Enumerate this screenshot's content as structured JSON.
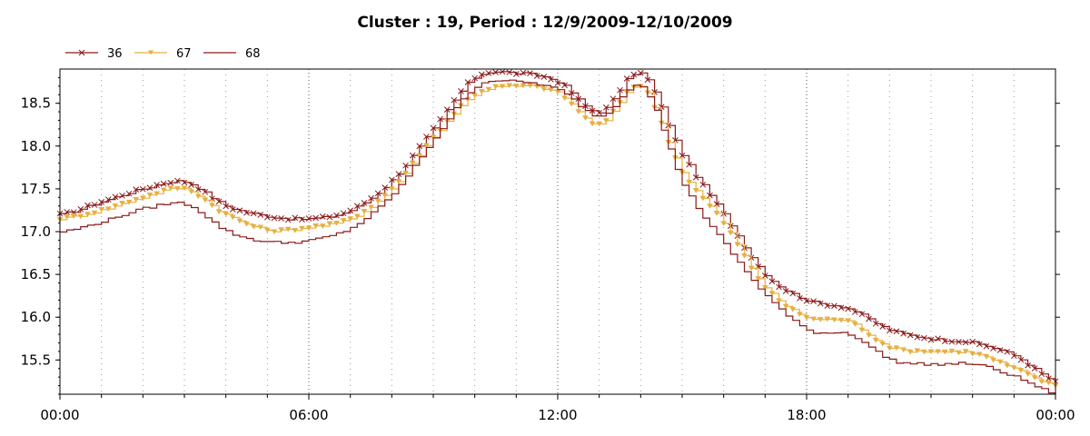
{
  "chart_data": {
    "type": "line",
    "title": "Cluster : 19, Period : 12/9/2009-12/10/2009",
    "xlabel": "",
    "ylabel": "",
    "x_tick_labels": [
      "00:00",
      "06:00",
      "12:00",
      "18:00",
      "00:00"
    ],
    "x_hours": [
      0,
      1,
      2,
      3,
      4,
      5,
      6,
      7,
      8,
      9,
      10,
      11,
      12,
      13,
      14,
      15,
      16,
      17,
      18,
      19,
      20,
      21,
      22,
      23,
      24
    ],
    "xlim": [
      0,
      24
    ],
    "ylim": [
      15.1,
      18.9
    ],
    "y_ticks": [
      15.5,
      16.0,
      16.5,
      17.0,
      17.5,
      18.0,
      18.5
    ],
    "y_tick_labels": [
      "15.5",
      "16.0",
      "16.5",
      "17.0",
      "17.5",
      "18.0",
      "18.5"
    ],
    "grid": true,
    "legend_position": "top-left",
    "series": [
      {
        "name": "36",
        "color": "#8b1a1a",
        "marker": "x",
        "values": [
          17.2,
          17.35,
          17.5,
          17.58,
          17.3,
          17.18,
          17.15,
          17.25,
          17.6,
          18.2,
          18.8,
          18.85,
          18.75,
          18.4,
          18.85,
          17.9,
          17.2,
          16.5,
          16.2,
          16.1,
          15.85,
          15.75,
          15.7,
          15.55,
          15.25
        ]
      },
      {
        "name": "67",
        "color": "#e6b040",
        "marker": "triangle-down",
        "values": [
          17.15,
          17.25,
          17.4,
          17.5,
          17.2,
          17.02,
          17.05,
          17.15,
          17.5,
          18.1,
          18.6,
          18.7,
          18.62,
          18.25,
          18.7,
          17.7,
          17.1,
          16.35,
          16.0,
          15.95,
          15.65,
          15.6,
          15.58,
          15.4,
          15.2
        ]
      },
      {
        "name": "68",
        "color": "#8b1a1a",
        "marker": "none",
        "values": [
          17.0,
          17.12,
          17.27,
          17.32,
          17.0,
          16.88,
          16.9,
          17.05,
          17.45,
          18.1,
          18.7,
          18.75,
          18.65,
          18.35,
          18.7,
          17.55,
          16.85,
          16.25,
          15.85,
          15.8,
          15.5,
          15.45,
          15.45,
          15.3,
          15.1
        ]
      }
    ]
  }
}
